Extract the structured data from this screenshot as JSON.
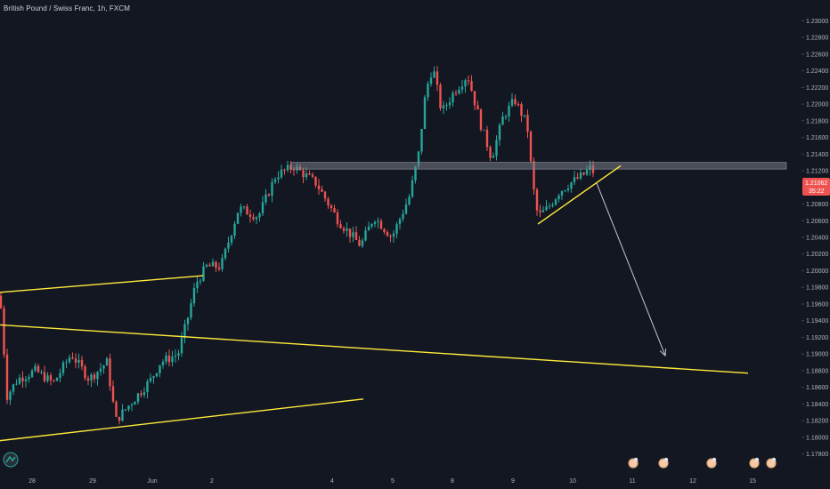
{
  "header": {
    "title": "British Pound / Swiss Franc, 1h, FXCM"
  },
  "colors": {
    "background": "#131722",
    "up": "#26a69a",
    "down": "#ef5350",
    "trendline": "#ffeb3b",
    "zone": "#787b86",
    "arrow": "#c8c8c8",
    "axis_text": "#b2b5be",
    "price_tag_bg": "#ef5350"
  },
  "price_tag": {
    "value": "1.21062",
    "countdown": "35:22"
  },
  "icons": [
    "tradingview-logo-icon",
    "event-avatar-icon",
    "event-avatar-icon",
    "event-avatar-icon",
    "event-avatar-icon",
    "event-avatar-icon"
  ],
  "chart_data": {
    "type": "candlestick",
    "title": "British Pound / Swiss Franc, 1h, FXCM",
    "x_tick_labels": [
      "28",
      "29",
      "Jun",
      "2",
      "4",
      "5",
      "8",
      "9",
      "10",
      "11",
      "12",
      "15"
    ],
    "y_tick_labels": [
      "1.23000",
      "1.22800",
      "1.22600",
      "1.22400",
      "1.22200",
      "1.22000",
      "1.21800",
      "1.21600",
      "1.21400",
      "1.21200",
      "1.21000",
      "1.20800",
      "1.20600",
      "1.20400",
      "1.20200",
      "1.20000",
      "1.19800",
      "1.19600",
      "1.19400",
      "1.19200",
      "1.19000",
      "1.18800",
      "1.18600",
      "1.18400",
      "1.18200",
      "1.18000",
      "1.17800"
    ],
    "ylim": [
      1.177,
      1.231
    ],
    "grid": false,
    "series_keypoints": [
      [
        0,
        1.197
      ],
      [
        8,
        1.185
      ],
      [
        20,
        1.187
      ],
      [
        40,
        1.188
      ],
      [
        60,
        1.1865
      ],
      [
        80,
        1.19
      ],
      [
        100,
        1.187
      ],
      [
        120,
        1.189
      ],
      [
        130,
        1.182
      ],
      [
        150,
        1.1845
      ],
      [
        170,
        1.187
      ],
      [
        180,
        1.189
      ],
      [
        200,
        1.19
      ],
      [
        210,
        1.194
      ],
      [
        220,
        1.1985
      ],
      [
        232,
        1.2005
      ],
      [
        248,
        1.2005
      ],
      [
        268,
        1.2075
      ],
      [
        290,
        1.2065
      ],
      [
        310,
        1.2115
      ],
      [
        330,
        1.2125
      ],
      [
        355,
        1.2105
      ],
      [
        380,
        1.206
      ],
      [
        405,
        1.203
      ],
      [
        420,
        1.2065
      ],
      [
        440,
        1.204
      ],
      [
        460,
        1.209
      ],
      [
        470,
        1.214
      ],
      [
        478,
        1.2215
      ],
      [
        486,
        1.2245
      ],
      [
        496,
        1.219
      ],
      [
        510,
        1.2215
      ],
      [
        525,
        1.2235
      ],
      [
        540,
        1.2175
      ],
      [
        552,
        1.2135
      ],
      [
        565,
        1.2185
      ],
      [
        578,
        1.2205
      ],
      [
        592,
        1.2175
      ],
      [
        598,
        1.2105
      ],
      [
        604,
        1.2065
      ],
      [
        615,
        1.2075
      ],
      [
        628,
        1.2095
      ],
      [
        640,
        1.2105
      ],
      [
        655,
        1.2115
      ],
      [
        664,
        1.2125
      ],
      [
        670,
        1.21062
      ]
    ],
    "zone": {
      "x_from": 327,
      "x_to": 883,
      "y_top": 1.213,
      "y_bottom": 1.2122
    },
    "trendlines": [
      {
        "from": [
          0,
          1.1935
        ],
        "to": [
          840,
          1.1877
        ]
      },
      {
        "from": [
          0,
          1.1974
        ],
        "to": [
          228,
          1.1994
        ]
      },
      {
        "from": [
          0,
          1.1796
        ],
        "to": [
          408,
          1.1846
        ]
      },
      {
        "from": [
          604,
          1.2056
        ],
        "to": [
          697,
          1.2126
        ]
      }
    ],
    "projection_arrow": {
      "from": [
        670,
        1.2105
      ],
      "to": [
        747,
        1.1898
      ]
    }
  }
}
